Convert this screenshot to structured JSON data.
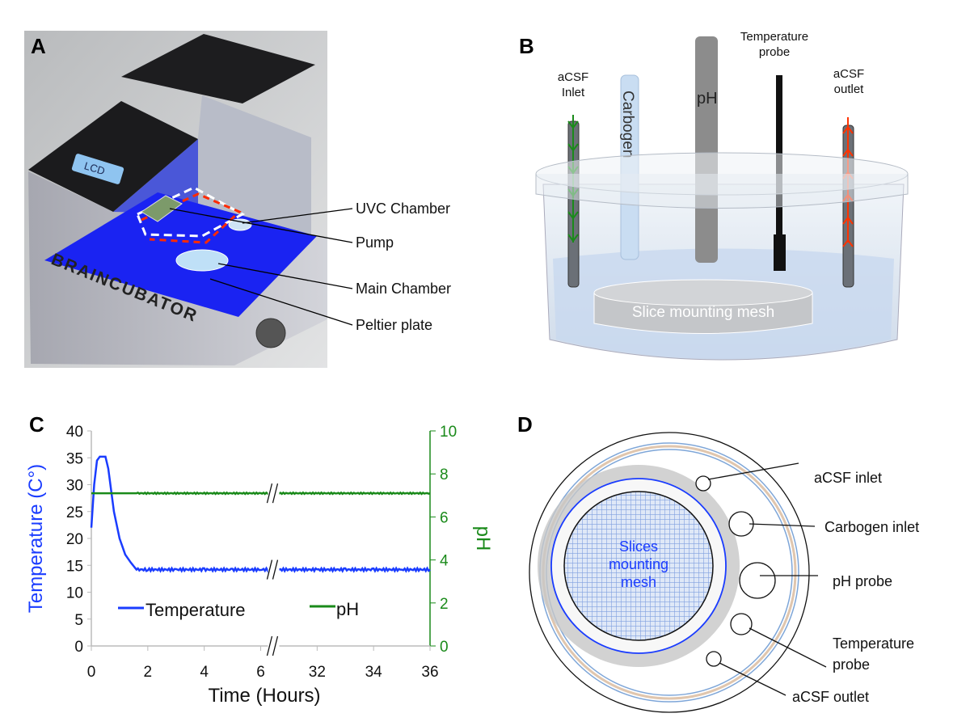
{
  "panels": {
    "A": {
      "letter": "A",
      "lcd": "LCD",
      "brand": "BRAINCUBATOR",
      "labels": [
        "UVC Chamber",
        "Pump",
        "Main Chamber",
        "Peltier plate"
      ]
    },
    "B": {
      "letter": "B",
      "inlet": [
        "aCSF",
        "Inlet"
      ],
      "carbogen": "Carbogen",
      "ph": "pH",
      "temp": [
        "Temperature",
        "probe"
      ],
      "outlet": [
        "aCSF",
        "outlet"
      ],
      "mesh": "Slice mounting mesh",
      "colors": {
        "inlet_arrow": "#1a8a1a",
        "outlet_arrow": "#ff3300"
      }
    },
    "C": {
      "letter": "C"
    },
    "D": {
      "letter": "D",
      "mesh": [
        "Slices",
        "mounting",
        "mesh"
      ],
      "labels": [
        "aCSF inlet",
        "Carbogen inlet",
        "pH probe",
        "Temperature",
        "probe",
        "aCSF outlet"
      ]
    }
  },
  "chart_data": {
    "type": "line",
    "xlabel": "Time (Hours)",
    "ylabel": "Temperature (C°)",
    "y2label": "pH",
    "x_ticks": [
      "0",
      "2",
      "4",
      "6",
      "32",
      "34",
      "36"
    ],
    "x_break": [
      6.4,
      30.4
    ],
    "ylim": [
      0,
      40
    ],
    "y_ticks": [
      "0",
      "5",
      "10",
      "15",
      "20",
      "25",
      "30",
      "35",
      "40"
    ],
    "y2lim": [
      0,
      10
    ],
    "y2_ticks": [
      "0",
      "2",
      "4",
      "6",
      "8",
      "10"
    ],
    "legend_placement": "bottom-center",
    "series": [
      {
        "name": "Temperature",
        "axis": "left",
        "color": "#1a3cff",
        "x": [
          0,
          0.1,
          0.2,
          0.3,
          0.5,
          0.6,
          0.7,
          0.8,
          1.0,
          1.2,
          1.4,
          1.6,
          2,
          3,
          4,
          5,
          6,
          6.4,
          30.4,
          32,
          33,
          34,
          35,
          36
        ],
        "y": [
          22,
          30,
          34.5,
          35.2,
          35.2,
          33,
          29,
          25,
          20,
          17,
          15.5,
          14.2,
          14.2,
          14.2,
          14.2,
          14.2,
          14.2,
          14.2,
          14.2,
          14.2,
          14.2,
          14.2,
          14.2,
          14.2
        ]
      },
      {
        "name": "pH",
        "axis": "right",
        "color": "#1a8a1a",
        "x": [
          0,
          2,
          4,
          6,
          6.4,
          30.4,
          32,
          34,
          36
        ],
        "y": [
          7.1,
          7.1,
          7.1,
          7.1,
          7.1,
          7.1,
          7.1,
          7.1,
          7.1
        ]
      }
    ]
  }
}
